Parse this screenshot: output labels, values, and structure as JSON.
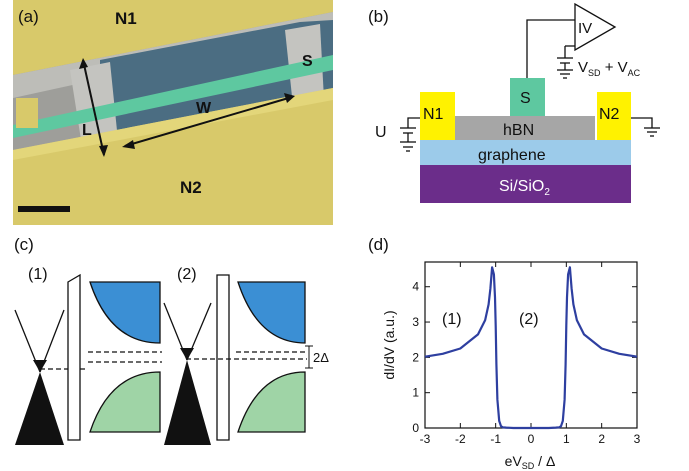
{
  "panels": {
    "a": {
      "label": "(a)",
      "n1": "N1",
      "n2": "N2",
      "s": "S",
      "l": "L",
      "w": "W"
    },
    "b": {
      "label": "(b)",
      "amp": "IV",
      "n1": "N1",
      "n2": "N2",
      "s": "S",
      "hbn": "hBN",
      "graphene": "graphene",
      "substrate": "Si/SiO",
      "substrate_sub": "2",
      "gate_u": "U",
      "vsd_v": "V",
      "vsd_sub": "SD",
      "vsd_plus": " + V",
      "vac_sub": "AC"
    },
    "c": {
      "label": "(c)",
      "case1": "(1)",
      "case2": "(2)",
      "gap": "2Δ"
    },
    "d": {
      "label": "(d)",
      "ylabel": "dI/dV (a.u.)",
      "xlabel_e": "eV",
      "xlabel_sub": "SD",
      "xlabel_rest": " / Δ",
      "region1": "(1)",
      "region2": "(2)"
    }
  },
  "colors": {
    "metal_yellow": "#fff200",
    "channel_green": "#5ec8a0",
    "hbn_gray": "#a6a6a6",
    "graphene_blue": "#9ccbea",
    "substrate_purple": "#6b2d8a",
    "band_blue": "#3b8fd4",
    "band_green": "#9fd4a6",
    "curve": "#2e3fa0"
  },
  "chart_data": {
    "type": "line",
    "title": "",
    "xlabel": "eV_SD / Δ",
    "ylabel": "dI/dV (a.u.)",
    "xlim": [
      -3,
      3
    ],
    "ylim": [
      0,
      4.7
    ],
    "xticks": [
      "-3",
      "-2",
      "-1",
      "0",
      "1",
      "2",
      "3"
    ],
    "yticks": [
      "0",
      "1",
      "2",
      "3",
      "4"
    ],
    "grid": false,
    "series": [
      {
        "x": [
          -3.0,
          -2.5,
          -2.0,
          -1.5,
          -1.3,
          -1.2,
          -1.15,
          -1.1,
          -1.05,
          -1.02,
          -1.0,
          -0.98,
          -0.95,
          -0.9,
          -0.85,
          -0.8,
          -0.7,
          -0.5,
          -0.3,
          0.0,
          0.3,
          0.5,
          0.7,
          0.8,
          0.85,
          0.9,
          0.95,
          0.98,
          1.0,
          1.02,
          1.05,
          1.1,
          1.15,
          1.2,
          1.3,
          1.5,
          2.0,
          2.5,
          3.0
        ],
        "y": [
          2.02,
          2.1,
          2.25,
          2.65,
          3.05,
          3.5,
          3.95,
          4.55,
          4.35,
          3.7,
          2.9,
          1.8,
          0.8,
          0.2,
          0.05,
          0.02,
          0.01,
          0.0,
          0.0,
          0.0,
          0.0,
          0.0,
          0.01,
          0.02,
          0.05,
          0.2,
          0.8,
          1.8,
          2.9,
          3.7,
          4.35,
          4.55,
          3.95,
          3.5,
          3.05,
          2.65,
          2.25,
          2.1,
          2.02
        ]
      }
    ]
  }
}
